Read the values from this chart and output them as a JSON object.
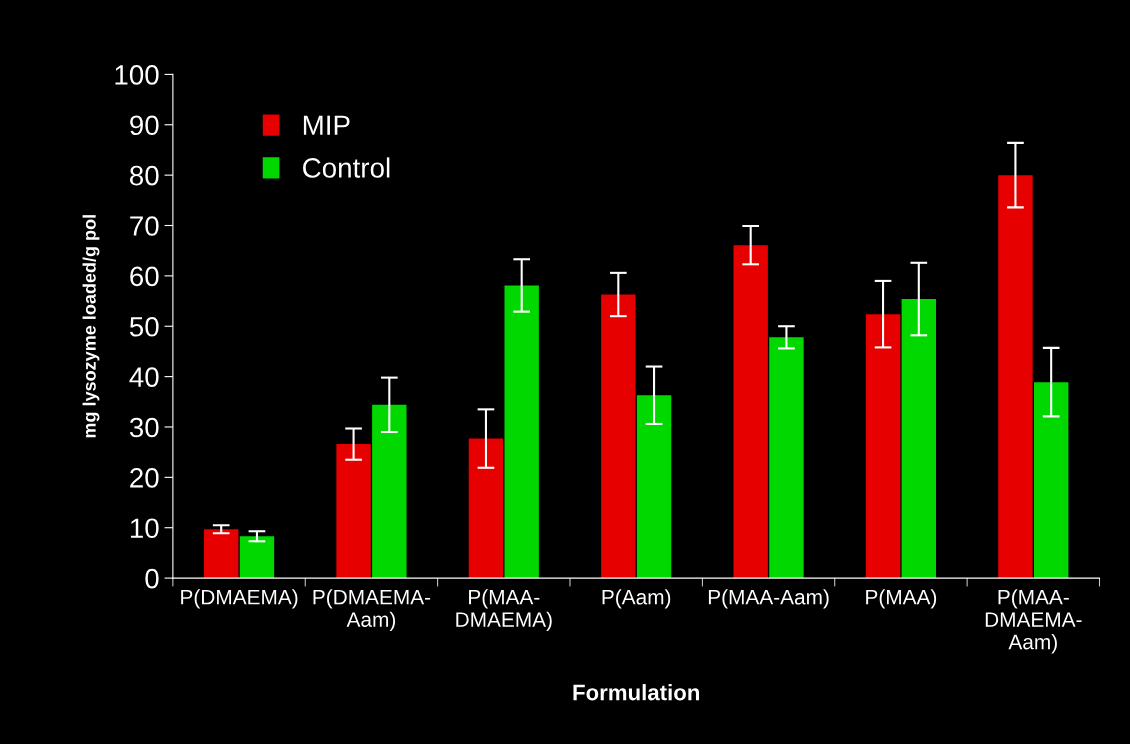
{
  "chart_data": {
    "type": "bar",
    "xlabel": "Formulation",
    "ylabel": "mg lysozyme loaded/g pol",
    "categories": [
      "P(DMAEMA)",
      "P(DMAEMA-\nAam)",
      "P(MAA-\nDMAEMA)",
      "P(Aam)",
      "P(MAA-Aam)",
      "P(MAA)",
      "P(MAA-\nDMAEMA-\nAam)"
    ],
    "series": [
      {
        "name": "MIP",
        "color": "#e60000",
        "values": [
          9.7,
          26.6,
          27.7,
          56.3,
          66.1,
          52.4,
          80.0
        ],
        "errors": [
          0.8,
          3.1,
          5.8,
          4.3,
          3.8,
          6.6,
          6.4
        ]
      },
      {
        "name": "Control",
        "color": "#00d800",
        "values": [
          8.3,
          34.4,
          58.1,
          36.3,
          47.8,
          55.4,
          38.9
        ],
        "errors": [
          1.0,
          5.4,
          5.2,
          5.7,
          2.2,
          7.2,
          6.8
        ]
      }
    ],
    "ylim": [
      0,
      100
    ],
    "yticks": [
      0,
      10,
      20,
      30,
      40,
      50,
      60,
      70,
      80,
      90,
      100
    ],
    "grid": false,
    "legend": "top left"
  }
}
